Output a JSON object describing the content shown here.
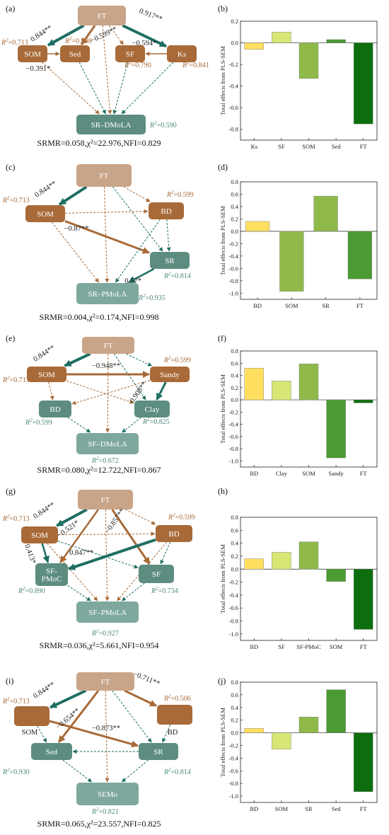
{
  "colors": {
    "brown": "#a86a38",
    "tan": "#c8a488",
    "teal_dark": "#1e6e62",
    "teal_node": "#5d8d80",
    "teal_light": "#7ea89e",
    "r2_brown": "#a86a38",
    "r2_teal": "#4f8a80",
    "bar_colors": [
      "#ffdf60",
      "#d8e675",
      "#8fba4a",
      "#4c9a32",
      "#0d6e0d"
    ]
  },
  "panels": [
    {
      "id": "a",
      "label": "(a)",
      "fit_text": "SRMR=0.058,χ²=22.976,NFI=0.829",
      "nodes": [
        {
          "id": "FT",
          "text": "FT",
          "style": "tan"
        },
        {
          "id": "SOM",
          "text": "SOM",
          "style": "brown"
        },
        {
          "id": "Sed",
          "text": "Sed",
          "style": "brown"
        },
        {
          "id": "SF",
          "text": "SF",
          "style": "brown"
        },
        {
          "id": "Ks",
          "text": "Ks",
          "style": "brown"
        },
        {
          "id": "Y",
          "text": "SR–DMoLA",
          "style": "teal"
        }
      ],
      "coefficients": [
        "0.844**",
        "0.917**",
        "−0.599**",
        "−0.594*",
        "−0.391*"
      ],
      "r2_labels": [
        {
          "text": "R²=0.713",
          "tone": "brown"
        },
        {
          "text": "R²=0.908",
          "tone": "brown"
        },
        {
          "text": "R²=0.790",
          "tone": "brown"
        },
        {
          "text": "R²=0.841",
          "tone": "brown"
        },
        {
          "text": "R²=0.590",
          "tone": "teal"
        }
      ]
    },
    {
      "id": "c",
      "label": "(c)",
      "fit_text": "SRMR=0.004,χ²=0.174,NFI=0.998",
      "nodes": [
        {
          "id": "FT",
          "text": "FT",
          "style": "tan"
        },
        {
          "id": "SOM",
          "text": "SOM",
          "style": "brown"
        },
        {
          "id": "BD",
          "text": "BD",
          "style": "brown"
        },
        {
          "id": "SR",
          "text": "SR",
          "style": "teal"
        },
        {
          "id": "Y",
          "text": "SR–PMoLA",
          "style": "tealLight"
        }
      ],
      "coefficients": [
        "0.844**",
        "−0.87**",
        "0.57*"
      ],
      "r2_labels": [
        {
          "text": "R²=0.713",
          "tone": "brown"
        },
        {
          "text": "R²=0.599",
          "tone": "brown"
        },
        {
          "text": "R²=0.814",
          "tone": "teal"
        },
        {
          "text": "R²=0.935",
          "tone": "teal"
        }
      ]
    },
    {
      "id": "e",
      "label": "(e)",
      "fit_text": "SRMR=0.080,χ²=12.722,NFI=0.867",
      "nodes": [
        {
          "id": "FT",
          "text": "FT",
          "style": "tan"
        },
        {
          "id": "SOM",
          "text": "SOM",
          "style": "brown"
        },
        {
          "id": "Sandy",
          "text": "Sandy",
          "style": "brown"
        },
        {
          "id": "BD",
          "text": "BD",
          "style": "teal"
        },
        {
          "id": "Clay",
          "text": "Clay",
          "style": "teal"
        },
        {
          "id": "Y",
          "text": "SF–DMoLA",
          "style": "tealLight"
        }
      ],
      "coefficients": [
        "0.844**",
        "−0.948**",
        "0.908**"
      ],
      "r2_labels": [
        {
          "text": "R²=0.713",
          "tone": "brown"
        },
        {
          "text": "R²=0.599",
          "tone": "brown"
        },
        {
          "text": "R²=0.599",
          "tone": "teal"
        },
        {
          "text": "R²=0.825",
          "tone": "teal"
        },
        {
          "text": "R²=0.672",
          "tone": "teal"
        }
      ]
    },
    {
      "id": "g",
      "label": "(g)",
      "fit_text": "SRMR=0.036,χ²=5.661,NFI=0.954",
      "nodes": [
        {
          "id": "FT",
          "text": "FT",
          "style": "tan"
        },
        {
          "id": "SOM",
          "text": "SOM",
          "style": "brown"
        },
        {
          "id": "BD",
          "text": "BD",
          "style": "brown"
        },
        {
          "id": "SFP",
          "text": "SF-\nPMoC",
          "style": "teal"
        },
        {
          "id": "SF",
          "text": "SF",
          "style": "teal"
        },
        {
          "id": "Y",
          "text": "SF–PMoLA",
          "style": "tealLight"
        }
      ],
      "coefficients": [
        "0.844**",
        "−0.521*",
        "−0.857**",
        "0.847**",
        "0.413*"
      ],
      "r2_labels": [
        {
          "text": "R²=0.713",
          "tone": "brown"
        },
        {
          "text": "R²=0.599",
          "tone": "brown"
        },
        {
          "text": "R²=0.890",
          "tone": "teal"
        },
        {
          "text": "R²=0.734",
          "tone": "teal"
        },
        {
          "text": "R²=0.927",
          "tone": "teal"
        }
      ]
    },
    {
      "id": "i",
      "label": "(i)",
      "fit_text": "SRMR=0.065,χ²=23.557,NFI=0.825",
      "nodes": [
        {
          "id": "FT",
          "text": "FT",
          "style": "tan"
        },
        {
          "id": "SOM",
          "text": "",
          "style": "brown"
        },
        {
          "id": "BD",
          "text": "",
          "style": "brown"
        },
        {
          "id": "Sed",
          "text": "Sed",
          "style": "teal"
        },
        {
          "id": "SR",
          "text": "SR",
          "style": "teal"
        },
        {
          "id": "Y",
          "text": "SEMo",
          "style": "tealLight"
        }
      ],
      "side_labels": [
        "SOM",
        "BD"
      ],
      "coefficients": [
        "0.844**",
        "−0.711**",
        "−0.654**",
        "−0.873**"
      ],
      "r2_labels": [
        {
          "text": "R²=0.713",
          "tone": "brown"
        },
        {
          "text": "R²=0.506",
          "tone": "brown"
        },
        {
          "text": "R²=0.930",
          "tone": "teal"
        },
        {
          "text": "R²=0.814",
          "tone": "teal"
        },
        {
          "text": "R²=0.821",
          "tone": "teal"
        }
      ]
    }
  ],
  "chart_data": [
    {
      "panel": "(b)",
      "type": "bar",
      "ylabel": "Total effects from PLS-SEM",
      "ylim": [
        -0.9,
        0.2
      ],
      "yticks": [
        0.2,
        0.0,
        -0.2,
        -0.4,
        -0.6,
        -0.8
      ],
      "categories": [
        "Ks",
        "SF",
        "SOM",
        "Sed",
        "FT"
      ],
      "values": [
        -0.06,
        0.1,
        -0.33,
        0.03,
        -0.75
      ]
    },
    {
      "panel": "(d)",
      "type": "bar",
      "ylabel": "Total effects from PLS-SEM",
      "ylim": [
        -1.1,
        0.8
      ],
      "yticks": [
        0.8,
        0.6,
        0.4,
        0.2,
        0.0,
        -0.2,
        -0.4,
        -0.6,
        -0.8,
        -1.0
      ],
      "categories": [
        "BD",
        "SOM",
        "SR",
        "FT"
      ],
      "values": [
        0.16,
        -0.97,
        0.57,
        -0.77
      ]
    },
    {
      "panel": "(f)",
      "type": "bar",
      "ylabel": "Total effects from PLS-SEM",
      "ylim": [
        -1.1,
        0.8
      ],
      "yticks": [
        0.8,
        0.6,
        0.4,
        0.2,
        0.0,
        -0.2,
        -0.4,
        -0.6,
        -0.8,
        -1.0
      ],
      "categories": [
        "BD",
        "Clay",
        "SOM",
        "Sandy",
        "FT"
      ],
      "values": [
        0.52,
        0.31,
        0.59,
        -0.95,
        -0.05
      ]
    },
    {
      "panel": "(h)",
      "type": "bar",
      "ylabel": "Total effects from PLS-SEM",
      "ylim": [
        -1.1,
        0.8
      ],
      "yticks": [
        0.8,
        0.6,
        0.4,
        0.2,
        0.0,
        -0.2,
        -0.4,
        -0.6,
        -0.8,
        -1.0
      ],
      "categories": [
        "BD",
        "SF",
        "SF-PMoC",
        "SOM",
        "FT"
      ],
      "values": [
        0.16,
        0.26,
        0.42,
        -0.19,
        -0.93
      ]
    },
    {
      "panel": "(j)",
      "type": "bar",
      "ylabel": "Total effects from PLS-SEM",
      "ylim": [
        -1.1,
        0.8
      ],
      "yticks": [
        0.8,
        0.6,
        0.4,
        0.2,
        0.0,
        -0.2,
        -0.4,
        -0.6,
        -0.8,
        -1.0
      ],
      "categories": [
        "BD",
        "SOM",
        "SR",
        "Sed",
        "FT"
      ],
      "values": [
        0.07,
        -0.26,
        0.25,
        0.68,
        -0.93
      ]
    }
  ]
}
